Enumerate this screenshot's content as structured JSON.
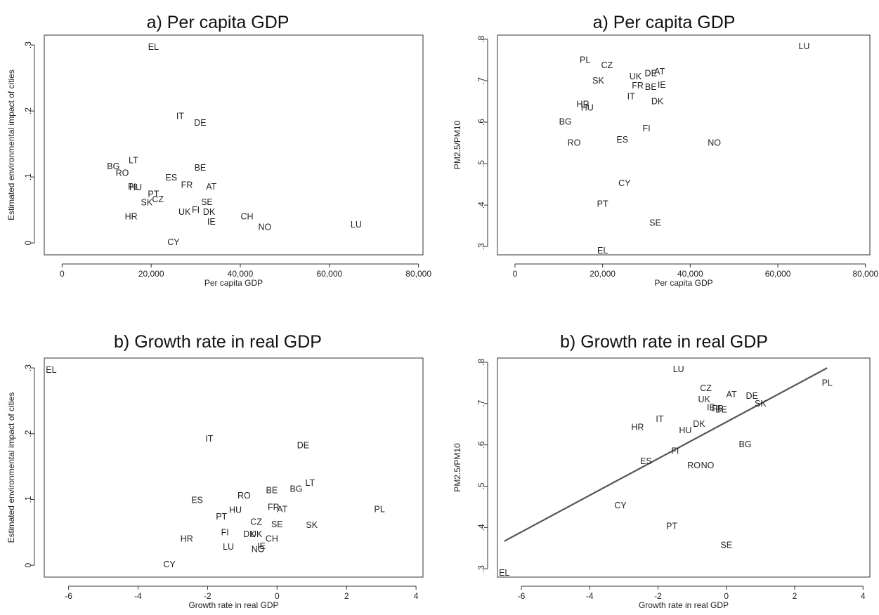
{
  "chart_data": [
    {
      "type": "scatter",
      "title": "a) Per capita GDP",
      "xlabel": "Per capita GDP",
      "ylabel": "Estimated environmental impact of cities",
      "xlim": [
        -4000,
        81000
      ],
      "ylim": [
        -0.018,
        0.315
      ],
      "xticks": [
        0,
        20000,
        40000,
        60000,
        80000
      ],
      "xtick_labels": [
        "0",
        "20,000",
        "40,000",
        "60,000",
        "80,000"
      ],
      "yticks": [
        0,
        0.1,
        0.2,
        0.3
      ],
      "ytick_labels": [
        "0",
        ".1",
        ".2",
        ".3"
      ],
      "points": [
        {
          "label": "EL",
          "x": 20500,
          "y": 0.297
        },
        {
          "label": "IT",
          "x": 26500,
          "y": 0.192
        },
        {
          "label": "DE",
          "x": 31000,
          "y": 0.182
        },
        {
          "label": "LT",
          "x": 16000,
          "y": 0.125
        },
        {
          "label": "BG",
          "x": 11500,
          "y": 0.116
        },
        {
          "label": "RO",
          "x": 13500,
          "y": 0.106
        },
        {
          "label": "BE",
          "x": 31000,
          "y": 0.114
        },
        {
          "label": "ES",
          "x": 24500,
          "y": 0.099
        },
        {
          "label": "FR",
          "x": 28000,
          "y": 0.088
        },
        {
          "label": "AT",
          "x": 33500,
          "y": 0.085
        },
        {
          "label": "PL",
          "x": 16000,
          "y": 0.085
        },
        {
          "label": "HU",
          "x": 16500,
          "y": 0.084
        },
        {
          "label": "PT",
          "x": 20500,
          "y": 0.074
        },
        {
          "label": "CZ",
          "x": 21500,
          "y": 0.066
        },
        {
          "label": "SK",
          "x": 19000,
          "y": 0.061
        },
        {
          "label": "SE",
          "x": 32500,
          "y": 0.062
        },
        {
          "label": "FI",
          "x": 30000,
          "y": 0.05
        },
        {
          "label": "UK",
          "x": 27500,
          "y": 0.047
        },
        {
          "label": "DK",
          "x": 33000,
          "y": 0.047
        },
        {
          "label": "HR",
          "x": 15500,
          "y": 0.04
        },
        {
          "label": "CH",
          "x": 41500,
          "y": 0.04
        },
        {
          "label": "IE",
          "x": 33500,
          "y": 0.032
        },
        {
          "label": "NO",
          "x": 45500,
          "y": 0.024
        },
        {
          "label": "LU",
          "x": 66000,
          "y": 0.028
        },
        {
          "label": "CY",
          "x": 25000,
          "y": 0.001
        }
      ]
    },
    {
      "type": "scatter",
      "title": "a) Per capita GDP",
      "xlabel": "Per capita GDP",
      "ylabel": "PM2.5/PM10",
      "xlim": [
        -4000,
        81000
      ],
      "ylim": [
        0.28,
        0.81
      ],
      "xticks": [
        0,
        20000,
        40000,
        60000,
        80000
      ],
      "xtick_labels": [
        "0",
        "20,000",
        "40,000",
        "60,000",
        "80,000"
      ],
      "yticks": [
        0.3,
        0.4,
        0.5,
        0.6,
        0.7,
        0.8
      ],
      "ytick_labels": [
        ".3",
        ".4",
        ".5",
        ".6",
        ".7",
        ".8"
      ],
      "points": [
        {
          "label": "LU",
          "x": 66000,
          "y": 0.783
        },
        {
          "label": "PL",
          "x": 16000,
          "y": 0.75
        },
        {
          "label": "CZ",
          "x": 21000,
          "y": 0.737
        },
        {
          "label": "DE",
          "x": 31000,
          "y": 0.718
        },
        {
          "label": "AT",
          "x": 33000,
          "y": 0.722
        },
        {
          "label": "UK",
          "x": 27500,
          "y": 0.71
        },
        {
          "label": "SK",
          "x": 19000,
          "y": 0.7
        },
        {
          "label": "FR",
          "x": 28000,
          "y": 0.688
        },
        {
          "label": "BE",
          "x": 31000,
          "y": 0.685
        },
        {
          "label": "IE",
          "x": 33500,
          "y": 0.69
        },
        {
          "label": "IT",
          "x": 26500,
          "y": 0.662
        },
        {
          "label": "DK",
          "x": 32500,
          "y": 0.65
        },
        {
          "label": "HR",
          "x": 15500,
          "y": 0.643
        },
        {
          "label": "HU",
          "x": 16500,
          "y": 0.635
        },
        {
          "label": "BG",
          "x": 11500,
          "y": 0.601
        },
        {
          "label": "FI",
          "x": 30000,
          "y": 0.585
        },
        {
          "label": "ES",
          "x": 24500,
          "y": 0.558
        },
        {
          "label": "RO",
          "x": 13500,
          "y": 0.55
        },
        {
          "label": "NO",
          "x": 45500,
          "y": 0.55
        },
        {
          "label": "CY",
          "x": 25000,
          "y": 0.453
        },
        {
          "label": "PT",
          "x": 20000,
          "y": 0.403
        },
        {
          "label": "SE",
          "x": 32000,
          "y": 0.357
        },
        {
          "label": "EL",
          "x": 20000,
          "y": 0.29
        }
      ]
    },
    {
      "type": "scatter",
      "title": "b) Growth rate in real GDP",
      "xlabel": "Growth rate in real GDP",
      "ylabel": "Estimated environmental impact of cities",
      "xlim": [
        -6.7,
        4.2
      ],
      "ylim": [
        -0.018,
        0.315
      ],
      "xticks": [
        -6,
        -4,
        -2,
        0,
        2,
        4
      ],
      "xtick_labels": [
        "-6",
        "-4",
        "-2",
        "0",
        "2",
        "4"
      ],
      "yticks": [
        0,
        0.1,
        0.2,
        0.3
      ],
      "ytick_labels": [
        "0",
        ".1",
        ".2",
        ".3"
      ],
      "points": [
        {
          "label": "EL",
          "x": -6.5,
          "y": 0.297
        },
        {
          "label": "IT",
          "x": -1.95,
          "y": 0.192
        },
        {
          "label": "DE",
          "x": 0.75,
          "y": 0.182
        },
        {
          "label": "LT",
          "x": 0.95,
          "y": 0.125
        },
        {
          "label": "BG",
          "x": 0.55,
          "y": 0.116
        },
        {
          "label": "BE",
          "x": -0.15,
          "y": 0.114
        },
        {
          "label": "RO",
          "x": -0.95,
          "y": 0.106
        },
        {
          "label": "ES",
          "x": -2.3,
          "y": 0.099
        },
        {
          "label": "FR",
          "x": -0.1,
          "y": 0.088
        },
        {
          "label": "AT",
          "x": 0.15,
          "y": 0.085
        },
        {
          "label": "HU",
          "x": -1.2,
          "y": 0.084
        },
        {
          "label": "PL",
          "x": 2.95,
          "y": 0.085
        },
        {
          "label": "PT",
          "x": -1.6,
          "y": 0.074
        },
        {
          "label": "CZ",
          "x": -0.6,
          "y": 0.066
        },
        {
          "label": "SE",
          "x": 0.0,
          "y": 0.062
        },
        {
          "label": "SK",
          "x": 1.0,
          "y": 0.061
        },
        {
          "label": "FI",
          "x": -1.5,
          "y": 0.05
        },
        {
          "label": "DK",
          "x": -0.8,
          "y": 0.047
        },
        {
          "label": "UK",
          "x": -0.6,
          "y": 0.047
        },
        {
          "label": "HR",
          "x": -2.6,
          "y": 0.04
        },
        {
          "label": "CH",
          "x": -0.15,
          "y": 0.04
        },
        {
          "label": "IE",
          "x": -0.45,
          "y": 0.029
        },
        {
          "label": "LU",
          "x": -1.4,
          "y": 0.028
        },
        {
          "label": "NO",
          "x": -0.55,
          "y": 0.024
        },
        {
          "label": "CY",
          "x": -3.1,
          "y": 0.001
        }
      ]
    },
    {
      "type": "scatter",
      "title": "b) Growth rate in real GDP",
      "xlabel": "Growth rate in real GDP",
      "ylabel": "PM2.5/PM10",
      "xlim": [
        -6.7,
        4.2
      ],
      "ylim": [
        0.28,
        0.81
      ],
      "xticks": [
        -6,
        -4,
        -2,
        0,
        2,
        4
      ],
      "xtick_labels": [
        "-6",
        "-4",
        "-2",
        "0",
        "2",
        "4"
      ],
      "yticks": [
        0.3,
        0.4,
        0.5,
        0.6,
        0.7,
        0.8
      ],
      "ytick_labels": [
        ".3",
        ".4",
        ".5",
        ".6",
        ".7",
        ".8"
      ],
      "fit_line": {
        "x": [
          -6.5,
          2.95
        ],
        "y": [
          0.367,
          0.786
        ]
      },
      "points": [
        {
          "label": "LU",
          "x": -1.4,
          "y": 0.783
        },
        {
          "label": "PL",
          "x": 2.95,
          "y": 0.75
        },
        {
          "label": "CZ",
          "x": -0.6,
          "y": 0.737
        },
        {
          "label": "AT",
          "x": 0.15,
          "y": 0.722
        },
        {
          "label": "DE",
          "x": 0.75,
          "y": 0.718
        },
        {
          "label": "UK",
          "x": -0.65,
          "y": 0.71
        },
        {
          "label": "SK",
          "x": 1.0,
          "y": 0.7
        },
        {
          "label": "IE",
          "x": -0.45,
          "y": 0.69
        },
        {
          "label": "FR",
          "x": -0.25,
          "y": 0.688
        },
        {
          "label": "BE",
          "x": -0.15,
          "y": 0.685
        },
        {
          "label": "IT",
          "x": -1.95,
          "y": 0.662
        },
        {
          "label": "DK",
          "x": -0.8,
          "y": 0.65
        },
        {
          "label": "HR",
          "x": -2.6,
          "y": 0.643
        },
        {
          "label": "HU",
          "x": -1.2,
          "y": 0.635
        },
        {
          "label": "BG",
          "x": 0.55,
          "y": 0.601
        },
        {
          "label": "FI",
          "x": -1.5,
          "y": 0.585
        },
        {
          "label": "ES",
          "x": -2.35,
          "y": 0.56
        },
        {
          "label": "RO",
          "x": -0.95,
          "y": 0.55
        },
        {
          "label": "NO",
          "x": -0.55,
          "y": 0.55
        },
        {
          "label": "CY",
          "x": -3.1,
          "y": 0.453
        },
        {
          "label": "PT",
          "x": -1.6,
          "y": 0.403
        },
        {
          "label": "SE",
          "x": 0.0,
          "y": 0.357
        },
        {
          "label": "EL",
          "x": -6.5,
          "y": 0.29
        }
      ]
    }
  ]
}
